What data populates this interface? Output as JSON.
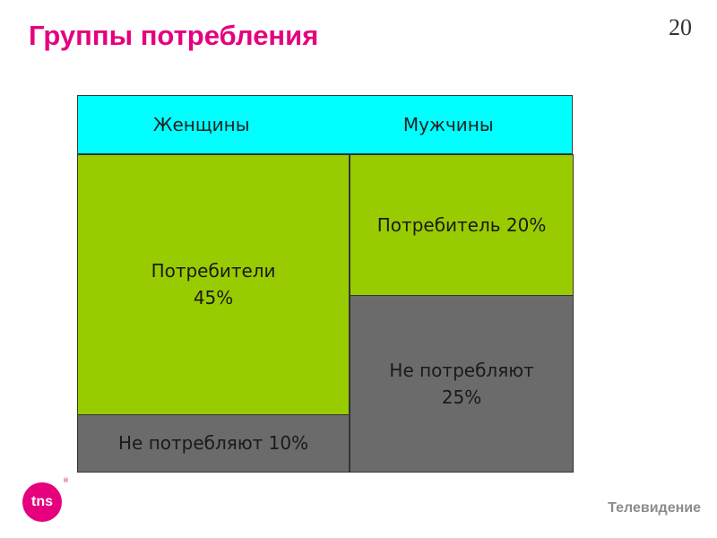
{
  "slide": {
    "page_number": "20",
    "title": "Группы потребления",
    "logo_text": "tns",
    "logo_mark": "®",
    "footer_label": "Телевидение"
  },
  "colors": {
    "title": "#e6007e",
    "header": "#00ffff",
    "consumers": "#99cc00",
    "non_consumers": "#6b6b6b",
    "logo": "#e6007e",
    "footer": "#8c8c8c"
  },
  "chart_data": {
    "type": "mekko",
    "title": "",
    "categories": [
      "Женщины",
      "Мужчины"
    ],
    "segments": [
      {
        "category": "Женщины",
        "label": "Потребители\n45%",
        "group": "consumers",
        "value": 45
      },
      {
        "category": "Женщины",
        "label": "Не потребляют 10%",
        "group": "non_consumers",
        "value": 10
      },
      {
        "category": "Мужчины",
        "label": "Потребитель 20%",
        "group": "consumers",
        "value": 20
      },
      {
        "category": "Мужчины",
        "label": "Не потребляют\n25%",
        "group": "non_consumers",
        "value": 25
      }
    ],
    "legend": "none",
    "grid": false
  }
}
